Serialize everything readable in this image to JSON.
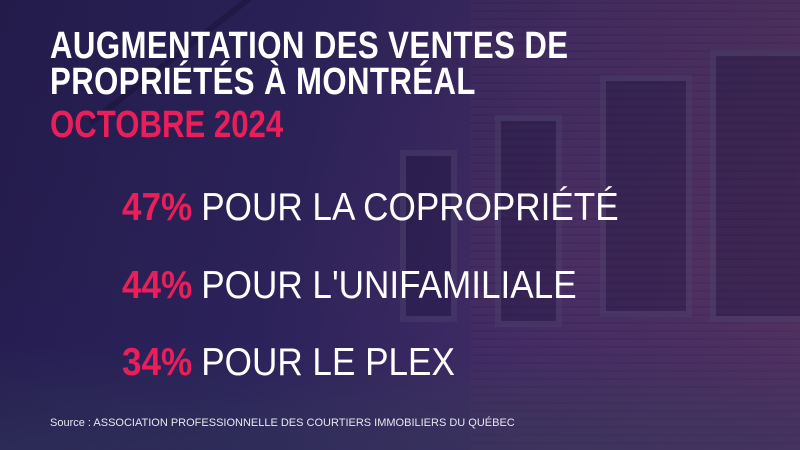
{
  "title": {
    "line1": "AUGMENTATION DES VENTES DE",
    "line2": "PROPRIÉTÉS À MONTRÉAL"
  },
  "subtitle": "OCTOBRE 2024",
  "stats": [
    {
      "value": "47%",
      "label": "POUR LA COPROPRIÉTÉ"
    },
    {
      "value": "44%",
      "label": "POUR L'UNIFAMILIALE"
    },
    {
      "value": "34%",
      "label": "POUR LE PLEX"
    }
  ],
  "source": "Source : ASSOCIATION PROFESSIONNELLE DES COURTIERS IMMOBILIERS DU QUÉBEC",
  "colors": {
    "accent": "#ec1e5a",
    "text": "#ffffff"
  }
}
